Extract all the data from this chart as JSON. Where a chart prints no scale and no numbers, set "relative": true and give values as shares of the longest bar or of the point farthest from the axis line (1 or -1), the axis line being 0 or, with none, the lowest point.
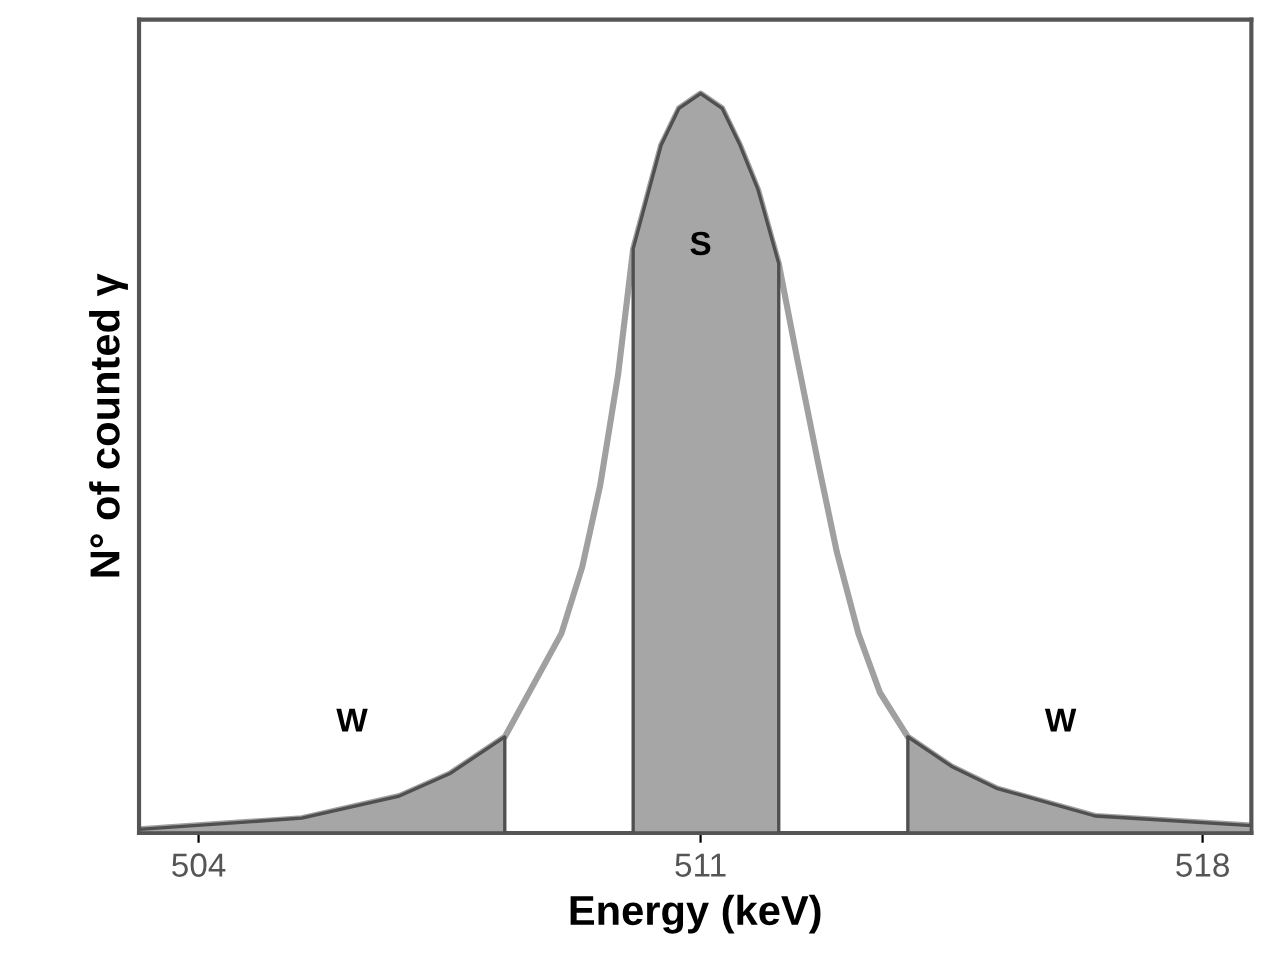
{
  "chart_data": {
    "type": "line",
    "relative": true,
    "xlabel": "Energy (keV)",
    "ylabel": "N° of counted γ",
    "xlim": [
      503.17,
      518.68
    ],
    "xticks": [
      504,
      511,
      518
    ],
    "tick_labels": "x",
    "grid": false,
    "legend": false,
    "marker": "none",
    "line_style": "solid",
    "series": [
      {
        "color": "#a0a0a0",
        "x": [
          503.17,
          505.44,
          506.8,
          507.5,
          508.27,
          509.06,
          509.35,
          509.6,
          509.85,
          510.06,
          510.45,
          510.7,
          511,
          511.3,
          511.55,
          511.8,
          512.09,
          512.35,
          512.64,
          512.9,
          513.2,
          513.5,
          513.89,
          514.5,
          515.14,
          516.5,
          518.68
        ],
        "values": [
          0.005,
          0.02,
          0.05,
          0.08,
          0.13,
          0.27,
          0.36,
          0.47,
          0.62,
          0.79,
          0.93,
          0.98,
          1,
          0.98,
          0.93,
          0.87,
          0.77,
          0.64,
          0.5,
          0.38,
          0.27,
          0.19,
          0.13,
          0.09,
          0.06,
          0.023,
          0.01
        ]
      },
      {
        "type": "area",
        "color": "#a6a6a6",
        "x": [
          503.17,
          505.44,
          506.8,
          507.5,
          508.27
        ],
        "values": [
          0.005,
          0.02,
          0.05,
          0.08,
          0.13
        ]
      },
      {
        "type": "area",
        "color": "#a6a6a6",
        "x": [
          510.06,
          510.45,
          510.7,
          511,
          511.3,
          511.55,
          511.8,
          512.09
        ],
        "values": [
          0.79,
          0.93,
          0.98,
          1,
          0.98,
          0.93,
          0.87,
          0.77
        ]
      },
      {
        "type": "area",
        "color": "#a6a6a6",
        "x": [
          513.89,
          514.5,
          515.14,
          516.5,
          518.68
        ],
        "values": [
          0.13,
          0.09,
          0.06,
          0.023,
          0.01
        ]
      }
    ],
    "annotations": [
      "W",
      "S",
      "W"
    ]
  }
}
